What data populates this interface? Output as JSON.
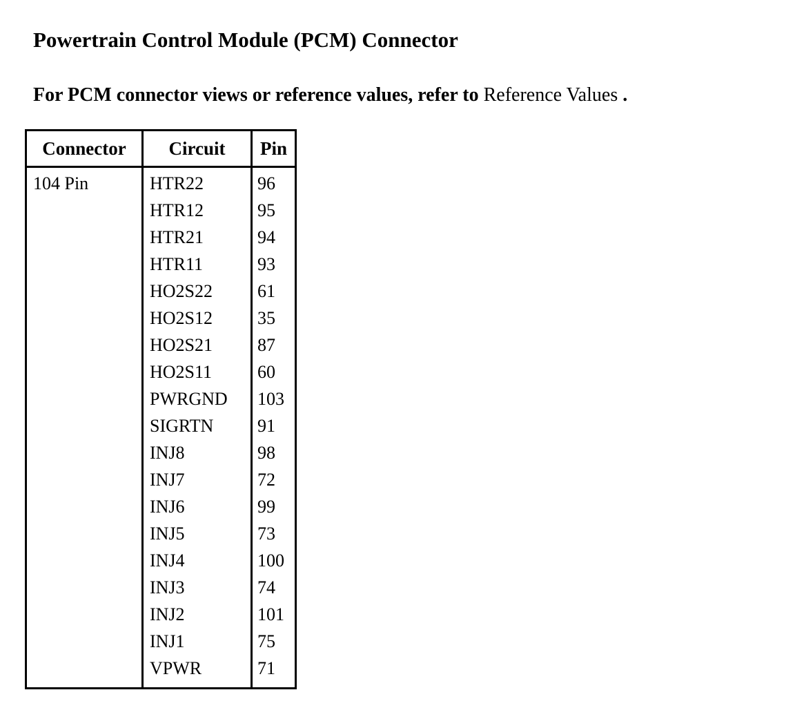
{
  "header": {
    "title": "Powertrain Control Module (PCM) Connector"
  },
  "intro": {
    "bold_text": "For PCM connector views or reference values, refer to",
    "link_text": "Reference Values",
    "suffix": "."
  },
  "table": {
    "headers": [
      "Connector",
      "Circuit",
      "Pin"
    ],
    "connector": "104 Pin",
    "rows": [
      {
        "circuit": "HTR22",
        "pin": "96"
      },
      {
        "circuit": "HTR12",
        "pin": "95"
      },
      {
        "circuit": "HTR21",
        "pin": "94"
      },
      {
        "circuit": "HTR11",
        "pin": "93"
      },
      {
        "circuit": "HO2S22",
        "pin": "61"
      },
      {
        "circuit": "HO2S12",
        "pin": "35"
      },
      {
        "circuit": "HO2S21",
        "pin": "87"
      },
      {
        "circuit": "HO2S11",
        "pin": "60"
      },
      {
        "circuit": "PWRGND",
        "pin": "103"
      },
      {
        "circuit": "SIGRTN",
        "pin": "91"
      },
      {
        "circuit": "INJ8",
        "pin": "98"
      },
      {
        "circuit": "INJ7",
        "pin": "72"
      },
      {
        "circuit": "INJ6",
        "pin": "99"
      },
      {
        "circuit": "INJ5",
        "pin": "73"
      },
      {
        "circuit": "INJ4",
        "pin": "100"
      },
      {
        "circuit": "INJ3",
        "pin": "74"
      },
      {
        "circuit": "INJ2",
        "pin": "101"
      },
      {
        "circuit": "INJ1",
        "pin": "75"
      },
      {
        "circuit": "VPWR",
        "pin": "71"
      }
    ]
  },
  "colors": {
    "text": "#000000",
    "background": "#ffffff",
    "border": "#000000"
  }
}
